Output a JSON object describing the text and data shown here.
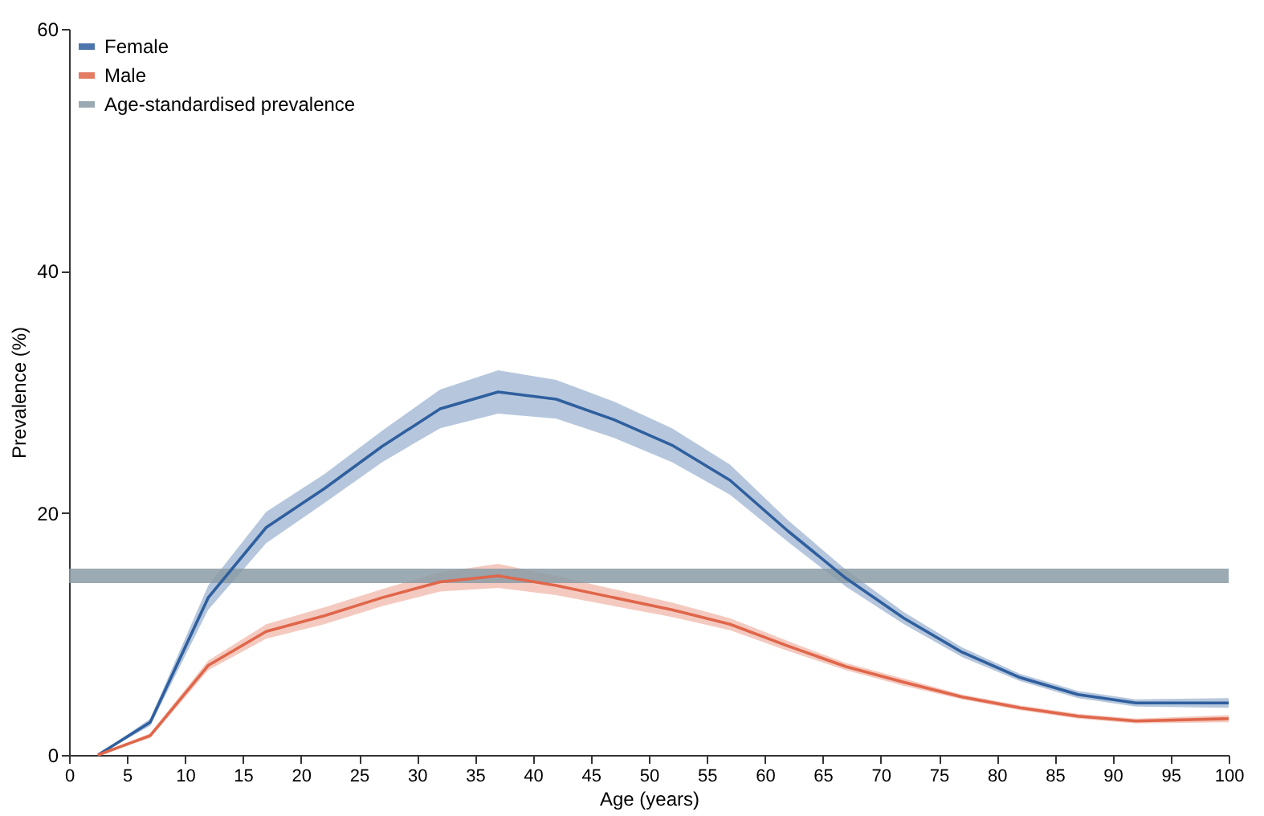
{
  "chart_data": {
    "type": "line",
    "xlabel": "Age (years)",
    "ylabel": "Prevalence (%)",
    "x": [
      2.5,
      7,
      12,
      17,
      22,
      27,
      32,
      37,
      42,
      47,
      52,
      57,
      62,
      67,
      72,
      77,
      82,
      87,
      92,
      100
    ],
    "series": [
      {
        "name": "Female",
        "color": "#2f5f9e",
        "values": [
          0,
          2.7,
          13,
          18.8,
          22,
          25.5,
          28.6,
          30,
          29.4,
          27.7,
          25.6,
          22.7,
          18.5,
          14.6,
          11.3,
          8.5,
          6.4,
          5,
          4.3,
          4.3
        ],
        "lower": [
          0,
          2.4,
          12,
          17.5,
          20.8,
          24.2,
          27,
          28.2,
          27.8,
          26.2,
          24.2,
          21.5,
          17.6,
          13.9,
          10.8,
          8.1,
          6.1,
          4.7,
          4,
          3.9
        ],
        "upper": [
          0,
          3,
          14,
          20.1,
          23.2,
          26.8,
          30.2,
          31.8,
          31,
          29.2,
          27,
          24,
          19.4,
          15.3,
          11.8,
          8.9,
          6.7,
          5.3,
          4.6,
          4.7
        ]
      },
      {
        "name": "Male",
        "color": "#e0664a",
        "values": [
          0,
          1.6,
          7.4,
          10.2,
          11.5,
          13,
          14.3,
          14.8,
          14,
          13,
          12,
          10.8,
          9,
          7.3,
          6,
          4.8,
          3.9,
          3.2,
          2.8,
          3
        ],
        "lower": [
          0,
          1.4,
          7,
          9.6,
          10.8,
          12.3,
          13.5,
          13.8,
          13.2,
          12.3,
          11.4,
          10.3,
          8.6,
          7,
          5.7,
          4.6,
          3.7,
          3,
          2.6,
          2.7
        ],
        "upper": [
          0,
          1.8,
          7.8,
          10.8,
          12.2,
          13.7,
          15.1,
          15.8,
          14.8,
          13.7,
          12.6,
          11.3,
          9.4,
          7.6,
          6.3,
          5,
          4.1,
          3.4,
          3,
          3.3
        ]
      }
    ],
    "bands": [
      {
        "axis": "y",
        "from": 14.2,
        "to": 15.4,
        "label": "Age-standardised prevalence",
        "color": "#8a9ba6"
      }
    ],
    "xlim": [
      0,
      100
    ],
    "xticks": [
      0,
      5,
      10,
      15,
      20,
      25,
      30,
      35,
      40,
      45,
      50,
      55,
      60,
      65,
      70,
      75,
      80,
      85,
      90,
      95,
      100
    ],
    "ylim": [
      0,
      60
    ],
    "yticks": [
      0,
      20,
      40,
      60
    ],
    "grid": false,
    "legend": "top left",
    "line_style": "solid",
    "marker": "none"
  }
}
